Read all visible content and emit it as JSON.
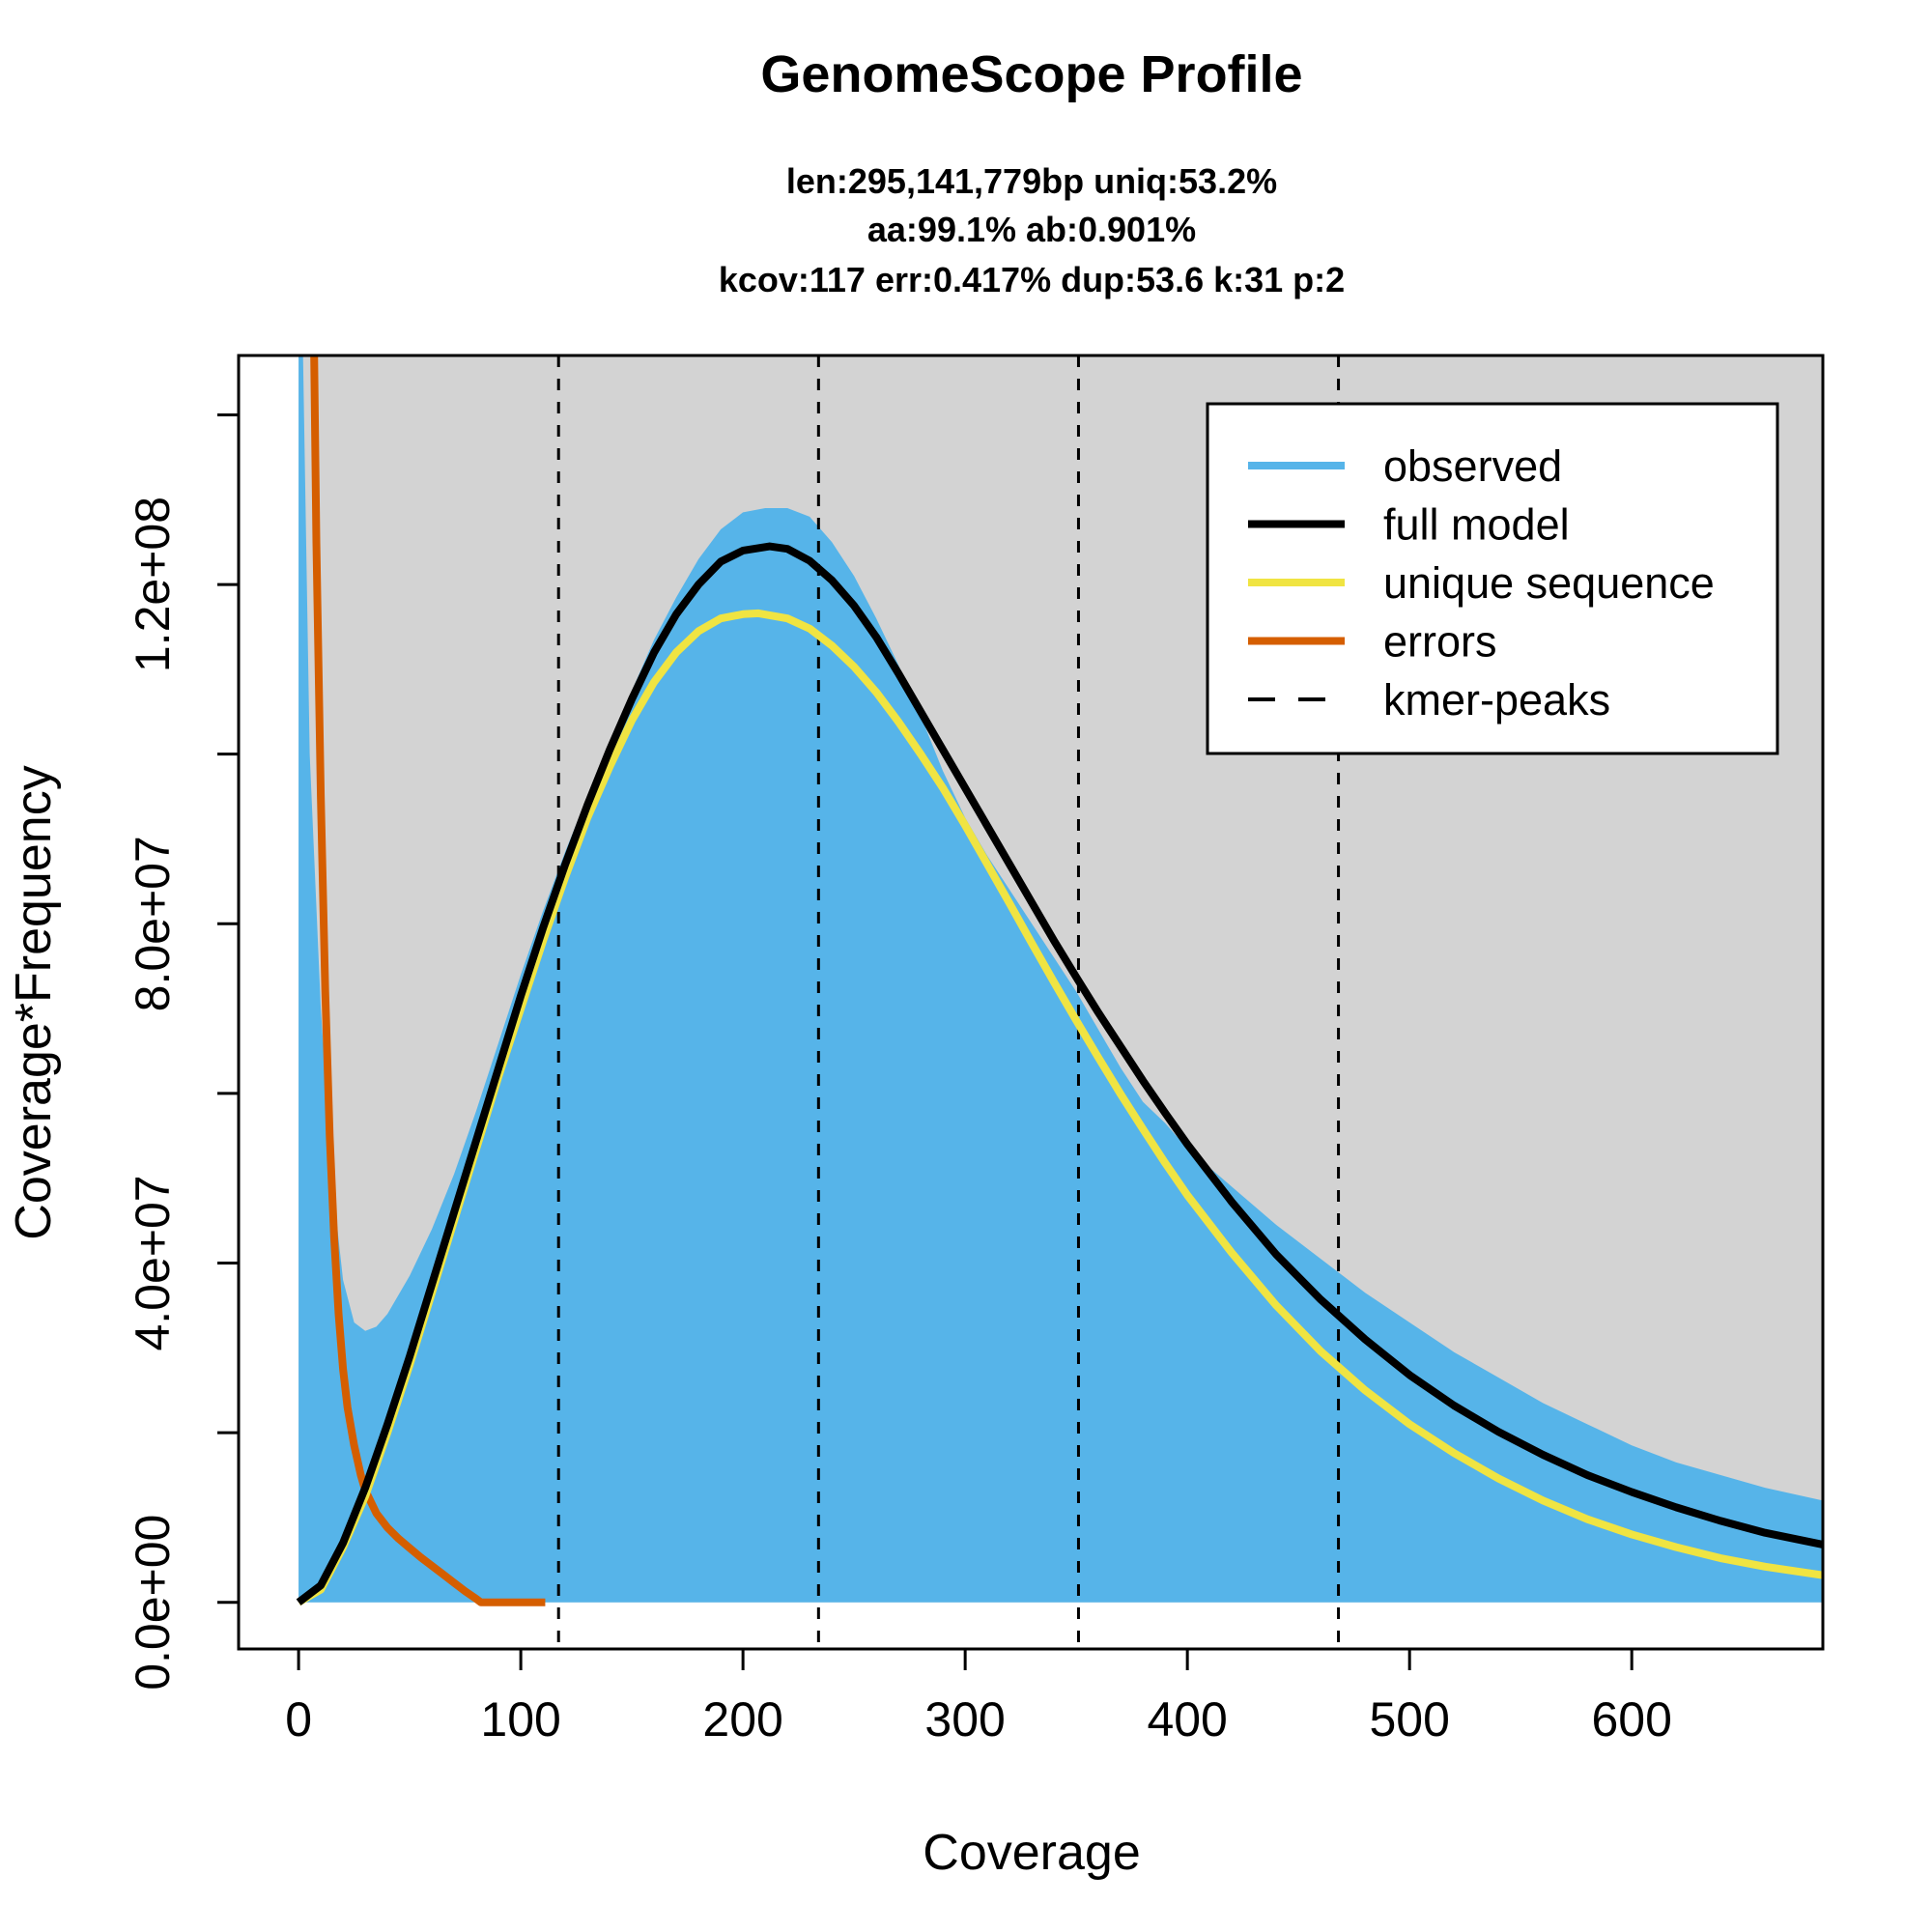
{
  "chart_data": {
    "type": "area",
    "title": "GenomeScope Profile",
    "subtitle_lines": [
      "len:295,141,779bp uniq:53.2%",
      "aa:99.1% ab:0.901%",
      "kcov:117 err:0.417%  dup:53.6  k:31 p:2"
    ],
    "xlabel": "Coverage",
    "ylabel": "Coverage*Frequency",
    "xlim": [
      -27,
      686
    ],
    "ylim": [
      -5500000,
      147000000
    ],
    "x_ticks": [
      0,
      100,
      200,
      300,
      400,
      500,
      600
    ],
    "x_tick_labels": [
      "0",
      "100",
      "200",
      "300",
      "400",
      "500",
      "600"
    ],
    "y_ticks": [
      0,
      20000000,
      40000000,
      60000000,
      80000000,
      100000000,
      120000000,
      140000000
    ],
    "y_tick_labels": [
      "0.0e+00",
      "",
      "4.0e+07",
      "",
      "8.0e+07",
      "",
      "1.2e+08",
      ""
    ],
    "kmer_peaks": [
      117,
      234,
      351,
      468
    ],
    "legend": {
      "position": "top-right",
      "entries": [
        {
          "label": "observed",
          "color": "#56b4e9",
          "style": "solid"
        },
        {
          "label": "full model",
          "color": "#000000",
          "style": "solid"
        },
        {
          "label": "unique sequence",
          "color": "#f0e442",
          "style": "solid"
        },
        {
          "label": "errors",
          "color": "#d55e00",
          "style": "solid"
        },
        {
          "label": "kmer-peaks",
          "color": "#000000",
          "style": "dashed"
        }
      ]
    },
    "colors": {
      "plot_background": "#d3d3d3",
      "observed": "#56b4e9",
      "full_model": "#000000",
      "unique_sequence": "#f0e442",
      "errors": "#d55e00"
    },
    "series": [
      {
        "name": "observed",
        "x": [
          0,
          2,
          5,
          10,
          15,
          20,
          25,
          30,
          35,
          40,
          50,
          60,
          70,
          80,
          90,
          100,
          110,
          120,
          130,
          140,
          150,
          160,
          170,
          180,
          190,
          200,
          210,
          220,
          230,
          240,
          250,
          260,
          270,
          280,
          290,
          300,
          310,
          320,
          330,
          340,
          350,
          360,
          370,
          380,
          390,
          400,
          420,
          440,
          460,
          480,
          500,
          520,
          540,
          560,
          580,
          600,
          620,
          640,
          660,
          686
        ],
        "y": [
          147000000,
          147000000,
          100000000,
          70000000,
          50000000,
          38000000,
          33000000,
          32000000,
          32500000,
          34000000,
          38500000,
          44000000,
          50500000,
          58000000,
          66000000,
          74000000,
          81500000,
          88500000,
          95000000,
          101000000,
          107500000,
          113500000,
          118500000,
          123000000,
          126500000,
          128500000,
          129000000,
          129000000,
          128000000,
          125000000,
          121000000,
          116000000,
          110500000,
          104500000,
          98000000,
          92500000,
          88000000,
          84000000,
          80000000,
          76000000,
          72000000,
          67500000,
          63000000,
          59000000,
          56500000,
          53500000,
          49000000,
          44500000,
          40500000,
          36500000,
          33000000,
          29500000,
          26500000,
          23500000,
          21000000,
          18500000,
          16500000,
          15000000,
          13500000,
          12000000
        ]
      },
      {
        "name": "full model",
        "x": [
          0,
          10,
          20,
          30,
          40,
          50,
          60,
          70,
          80,
          90,
          100,
          110,
          120,
          130,
          140,
          150,
          160,
          170,
          180,
          190,
          200,
          212,
          220,
          230,
          240,
          250,
          260,
          270,
          280,
          290,
          300,
          310,
          320,
          330,
          340,
          350,
          360,
          370,
          380,
          390,
          400,
          420,
          440,
          460,
          480,
          500,
          520,
          540,
          560,
          580,
          600,
          620,
          640,
          660,
          686
        ],
        "y": [
          0,
          2000000,
          7000000,
          13500000,
          21000000,
          29000000,
          37500000,
          46000000,
          54500000,
          63000000,
          71500000,
          79500000,
          87000000,
          94000000,
          100500000,
          106500000,
          112000000,
          116500000,
          120000000,
          122700000,
          124000000,
          124500000,
          124200000,
          122800000,
          120500000,
          117500000,
          113800000,
          109500000,
          105000000,
          100500000,
          96000000,
          91500000,
          87000000,
          82500000,
          78000000,
          73700000,
          69500000,
          65500000,
          61500000,
          57700000,
          54000000,
          47200000,
          41000000,
          35700000,
          31000000,
          26800000,
          23200000,
          20100000,
          17400000,
          15000000,
          13000000,
          11200000,
          9600000,
          8200000,
          6800000
        ]
      },
      {
        "name": "unique sequence",
        "x": [
          0,
          10,
          20,
          30,
          40,
          50,
          60,
          70,
          80,
          90,
          100,
          110,
          120,
          130,
          140,
          150,
          160,
          170,
          180,
          190,
          200,
          207,
          220,
          230,
          240,
          250,
          260,
          270,
          280,
          290,
          300,
          310,
          320,
          330,
          340,
          350,
          360,
          370,
          380,
          390,
          400,
          420,
          440,
          460,
          480,
          500,
          520,
          540,
          560,
          580,
          600,
          620,
          640,
          660,
          686
        ],
        "y": [
          0,
          1500000,
          6500000,
          12500000,
          20000000,
          28000000,
          36500000,
          45000000,
          53500000,
          62000000,
          70000000,
          78000000,
          85500000,
          92500000,
          98500000,
          104000000,
          108500000,
          112000000,
          114500000,
          116000000,
          116500000,
          116600000,
          116000000,
          114800000,
          112800000,
          110300000,
          107300000,
          103800000,
          100000000,
          96000000,
          91600000,
          87000000,
          82400000,
          77700000,
          73100000,
          68600000,
          64200000,
          59900000,
          55800000,
          51800000,
          48000000,
          41200000,
          35000000,
          29600000,
          25000000,
          21000000,
          17600000,
          14600000,
          12000000,
          9800000,
          8000000,
          6500000,
          5200000,
          4200000,
          3200000
        ]
      },
      {
        "name": "errors",
        "x": [
          7,
          8,
          10,
          12,
          14,
          16,
          18,
          20,
          22,
          25,
          28,
          30,
          35,
          40,
          45,
          50,
          55,
          60,
          65,
          70,
          75,
          80,
          82,
          90,
          100,
          111
        ],
        "y": [
          147000000,
          125000000,
          95000000,
          72000000,
          55000000,
          43000000,
          34000000,
          27500000,
          23000000,
          18500000,
          15000000,
          13200000,
          10500000,
          8800000,
          7500000,
          6400000,
          5300000,
          4300000,
          3300000,
          2300000,
          1300000,
          400000,
          0,
          0,
          0,
          0
        ]
      }
    ]
  }
}
